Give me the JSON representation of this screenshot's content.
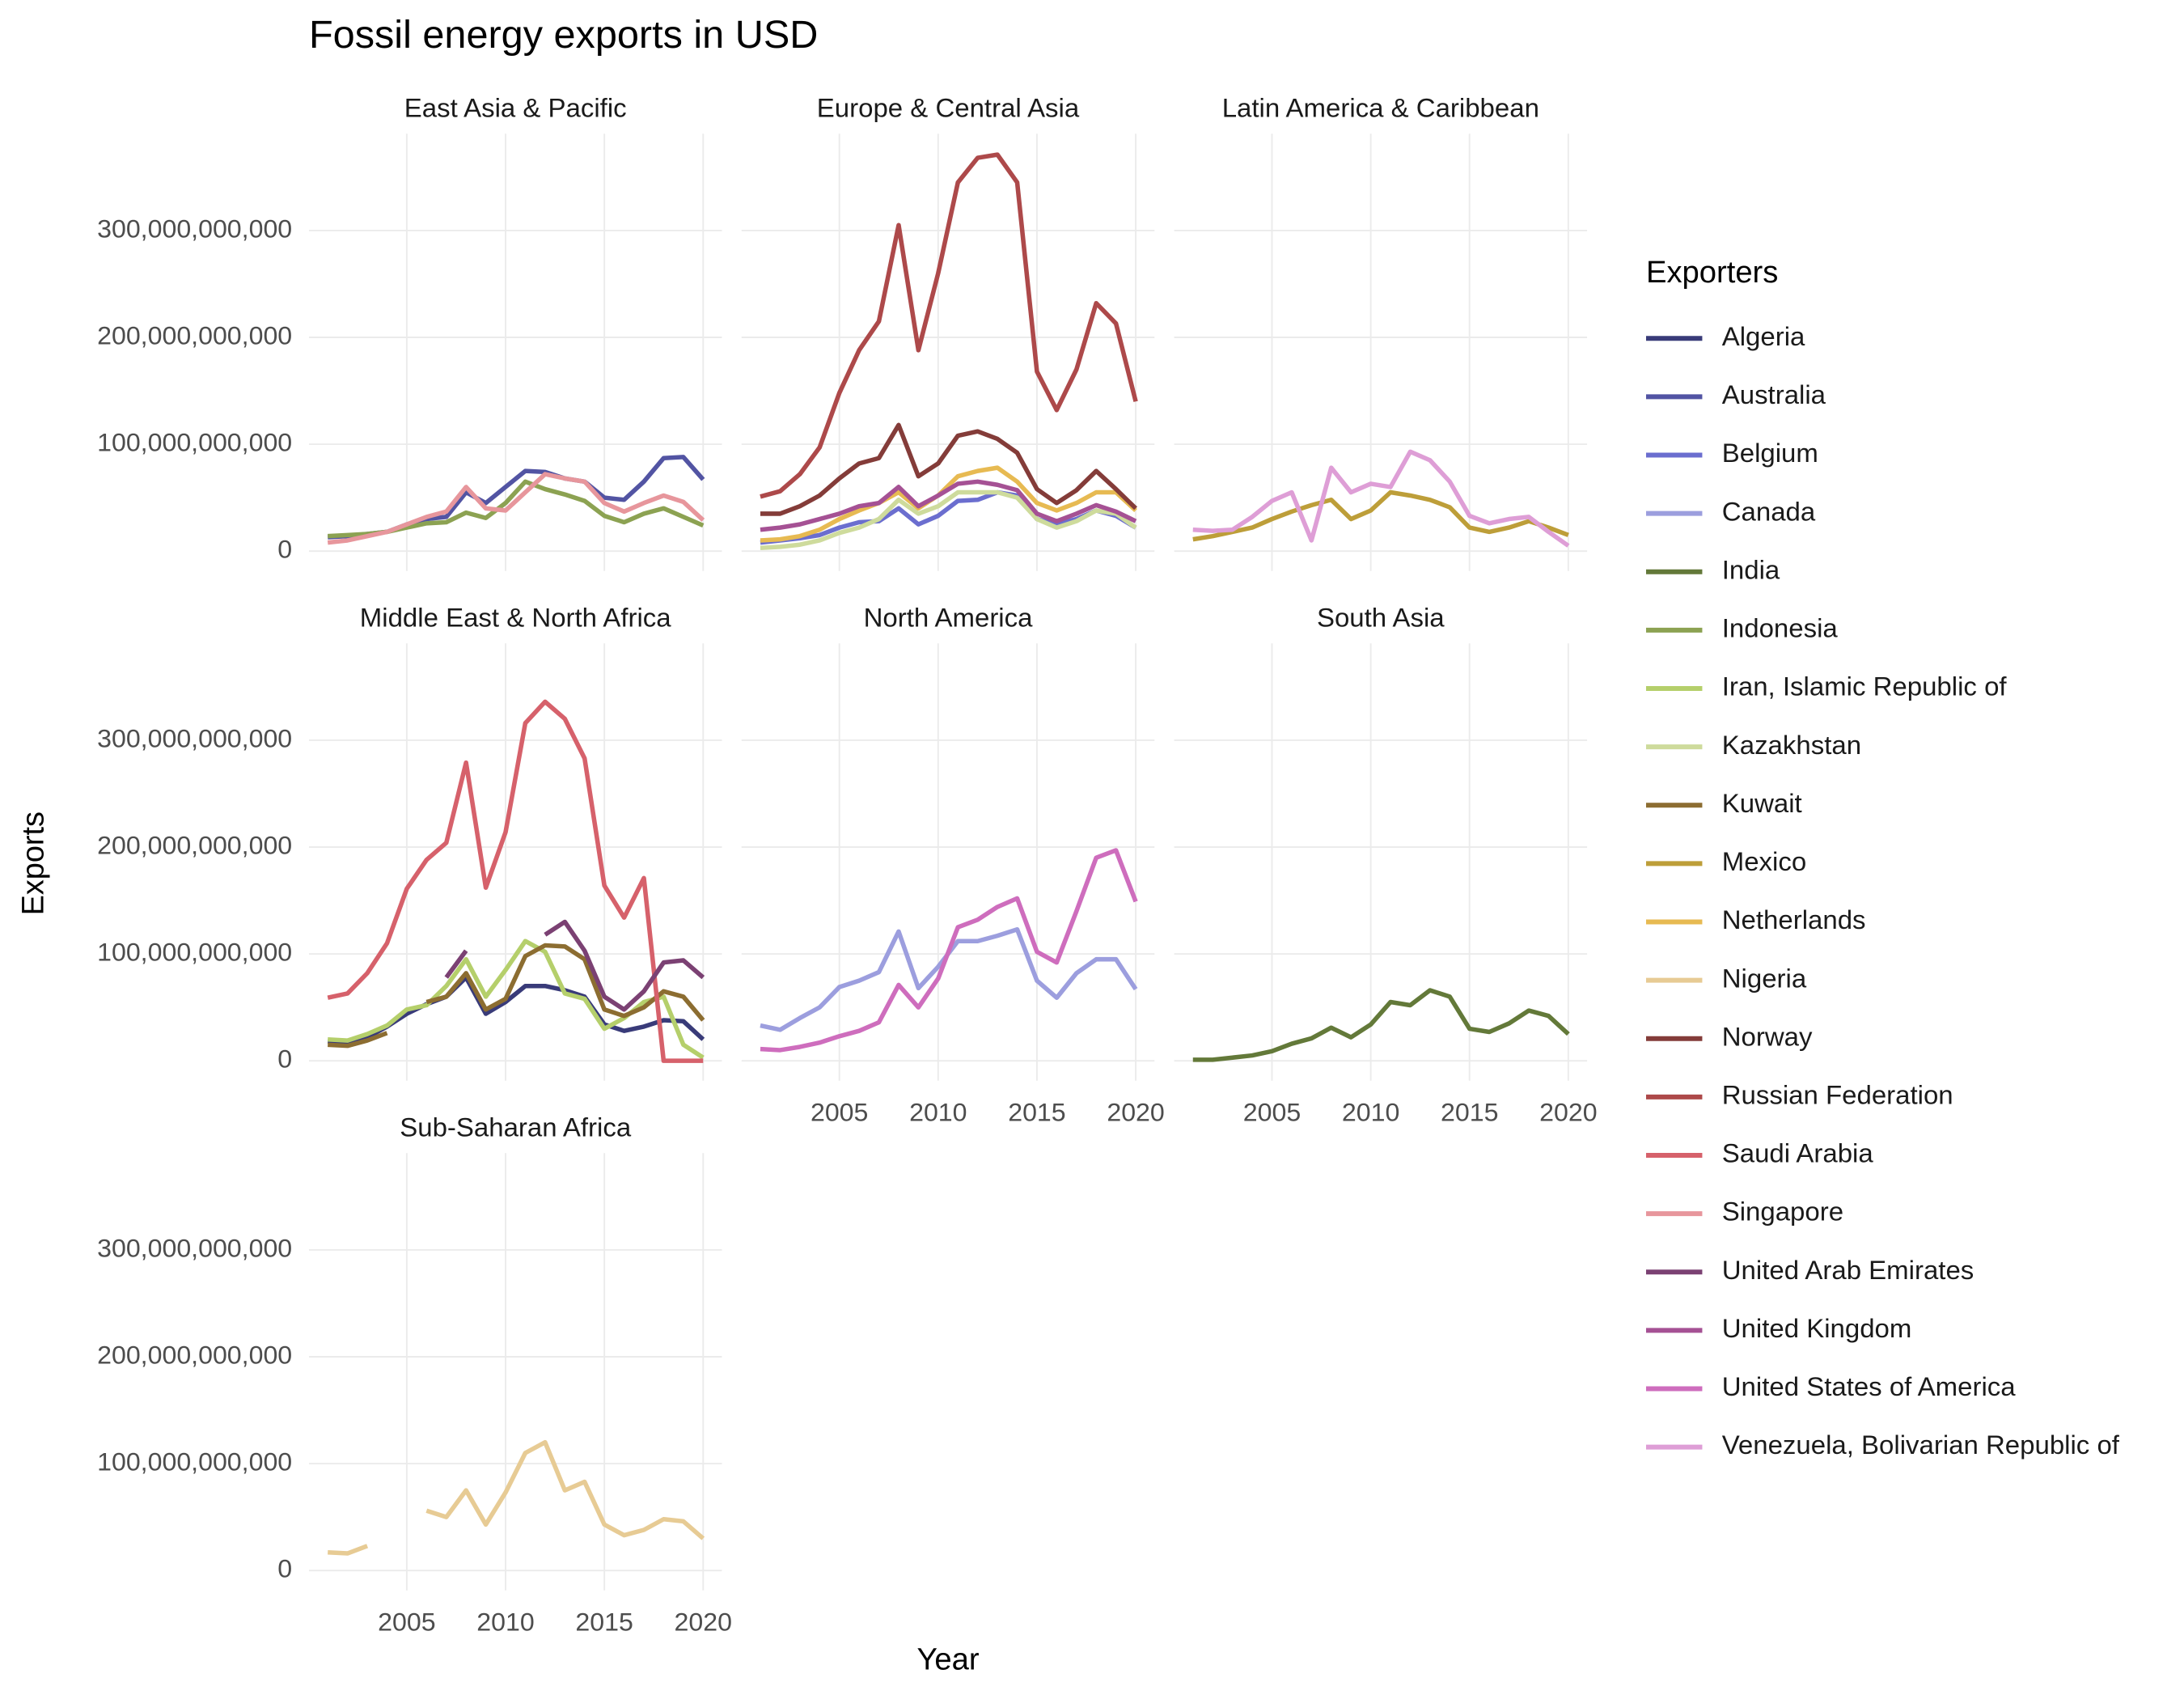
{
  "chart_data": {
    "type": "line",
    "title": "Fossil energy exports in USD",
    "x_label": "Year",
    "y_label": "Exports",
    "legend_title": "Exporters",
    "x": [
      2001,
      2002,
      2003,
      2004,
      2005,
      2006,
      2007,
      2008,
      2009,
      2010,
      2011,
      2012,
      2013,
      2014,
      2015,
      2016,
      2017,
      2018,
      2019,
      2020
    ],
    "xlim": [
      2000.05,
      2020.95
    ],
    "xticks": [
      2005,
      2010,
      2015,
      2020
    ],
    "ylim": [
      -18600000000.0,
      390600000000.0
    ],
    "yticks": [
      0,
      {
        "value": 100000000000.0,
        "label": "100,000,000,000"
      },
      {
        "value": 200000000000.0,
        "label": "200,000,000,000"
      },
      {
        "value": 300000000000.0,
        "label": "300,000,000,000"
      }
    ],
    "grid": true,
    "panels": [
      {
        "title": "East Asia & Pacific",
        "series": [
          {
            "name": "Australia",
            "color": "#5254a3",
            "values": [
              13000000000.0,
              14000000000.0,
              16000000000.0,
              18000000000.0,
              25000000000.0,
              30000000000.0,
              32000000000.0,
              55000000000.0,
              45000000000.0,
              60000000000.0,
              75000000000.0,
              74000000000.0,
              68000000000.0,
              65000000000.0,
              50000000000.0,
              48000000000.0,
              65000000000.0,
              87000000000.0,
              88000000000.0,
              67000000000.0
            ]
          },
          {
            "name": "Indonesia",
            "color": "#8ca252",
            "values": [
              14000000000.0,
              15000000000.0,
              16000000000.0,
              18000000000.0,
              22000000000.0,
              26000000000.0,
              27000000000.0,
              36000000000.0,
              31000000000.0,
              45000000000.0,
              65000000000.0,
              58000000000.0,
              53000000000.0,
              47000000000.0,
              33000000000.0,
              27000000000.0,
              35000000000.0,
              40000000000.0,
              32000000000.0,
              24000000000.0
            ]
          },
          {
            "name": "Singapore",
            "color": "#e7969c",
            "values": [
              8000000000.0,
              10000000000.0,
              14000000000.0,
              18000000000.0,
              25000000000.0,
              32000000000.0,
              37000000000.0,
              60000000000.0,
              40000000000.0,
              38000000000.0,
              55000000000.0,
              72000000000.0,
              68000000000.0,
              65000000000.0,
              45000000000.0,
              37000000000.0,
              45000000000.0,
              52000000000.0,
              46000000000.0,
              29000000000.0
            ]
          }
        ]
      },
      {
        "title": "Europe & Central Asia",
        "series": [
          {
            "name": "Belgium",
            "color": "#6b6ecf",
            "values": [
              8000000000.0,
              10000000000.0,
              12000000000.0,
              15000000000.0,
              22000000000.0,
              27000000000.0,
              28000000000.0,
              40000000000.0,
              25000000000.0,
              33000000000.0,
              47000000000.0,
              48000000000.0,
              55000000000.0,
              52000000000.0,
              30000000000.0,
              25000000000.0,
              30000000000.0,
              38000000000.0,
              33000000000.0,
              22000000000.0
            ]
          },
          {
            "name": "Kazakhstan",
            "color": "#cedb9c",
            "values": [
              3000000000.0,
              4000000000.0,
              6000000000.0,
              10000000000.0,
              17000000000.0,
              22000000000.0,
              30000000000.0,
              48000000000.0,
              35000000000.0,
              42000000000.0,
              55000000000.0,
              55000000000.0,
              55000000000.0,
              50000000000.0,
              30000000000.0,
              22000000000.0,
              28000000000.0,
              38000000000.0,
              35000000000.0,
              22000000000.0
            ]
          },
          {
            "name": "Netherlands",
            "color": "#e7ba52",
            "values": [
              10000000000.0,
              11000000000.0,
              14000000000.0,
              20000000000.0,
              30000000000.0,
              38000000000.0,
              45000000000.0,
              55000000000.0,
              40000000000.0,
              52000000000.0,
              70000000000.0,
              75000000000.0,
              78000000000.0,
              65000000000.0,
              45000000000.0,
              38000000000.0,
              45000000000.0,
              55000000000.0,
              55000000000.0,
              38000000000.0
            ]
          },
          {
            "name": "Norway",
            "color": "#843c39",
            "values": [
              35000000000.0,
              35000000000.0,
              42000000000.0,
              52000000000.0,
              68000000000.0,
              82000000000.0,
              87000000000.0,
              118000000000.0,
              70000000000.0,
              82000000000.0,
              108000000000.0,
              112000000000.0,
              105000000000.0,
              92000000000.0,
              58000000000.0,
              45000000000.0,
              57000000000.0,
              75000000000.0,
              58000000000.0,
              40000000000.0
            ]
          },
          {
            "name": "Russian Federation",
            "color": "#ad494a",
            "values": [
              51000000000.0,
              56000000000.0,
              72000000000.0,
              97000000000.0,
              148000000000.0,
              188000000000.0,
              215000000000.0,
              305000000000.0,
              188000000000.0,
              260000000000.0,
              345000000000.0,
              368000000000.0,
              371000000000.0,
              345000000000.0,
              168000000000.0,
              132000000000.0,
              170000000000.0,
              232000000000.0,
              213000000000.0,
              140000000000.0
            ]
          },
          {
            "name": "United Kingdom",
            "color": "#a55194",
            "values": [
              20000000000.0,
              22000000000.0,
              25000000000.0,
              30000000000.0,
              35000000000.0,
              42000000000.0,
              45000000000.0,
              60000000000.0,
              42000000000.0,
              52000000000.0,
              63000000000.0,
              65000000000.0,
              62000000000.0,
              57000000000.0,
              35000000000.0,
              28000000000.0,
              35000000000.0,
              43000000000.0,
              37000000000.0,
              28000000000.0
            ]
          }
        ]
      },
      {
        "title": "Latin America & Caribbean",
        "series": [
          {
            "name": "Mexico",
            "color": "#bd9e39",
            "values": [
              11000000000.0,
              14000000000.0,
              18000000000.0,
              22000000000.0,
              30000000000.0,
              37000000000.0,
              43000000000.0,
              48000000000.0,
              30000000000.0,
              38000000000.0,
              55000000000.0,
              52000000000.0,
              48000000000.0,
              41000000000.0,
              22000000000.0,
              18000000000.0,
              22000000000.0,
              28000000000.0,
              22000000000.0,
              15000000000.0
            ]
          },
          {
            "name": "Venezuela, Bolivarian Republic of",
            "color": "#de9ed6",
            "values": [
              20000000000.0,
              19000000000.0,
              20000000000.0,
              32000000000.0,
              47000000000.0,
              55000000000.0,
              10000000000.0,
              78000000000.0,
              55000000000.0,
              63000000000.0,
              60000000000.0,
              93000000000.0,
              85000000000.0,
              65000000000.0,
              33000000000.0,
              26000000000.0,
              30000000000.0,
              32000000000.0,
              18000000000.0,
              5000000000.0
            ]
          }
        ]
      },
      {
        "title": "Middle East & North Africa",
        "series": [
          {
            "name": "Algeria",
            "color": "#393b79",
            "values": [
              18000000000.0,
              17000000000.0,
              22000000000.0,
              32000000000.0,
              44000000000.0,
              53000000000.0,
              60000000000.0,
              78000000000.0,
              44000000000.0,
              55000000000.0,
              70000000000.0,
              70000000000.0,
              66000000000.0,
              60000000000.0,
              34000000000.0,
              28000000000.0,
              32000000000.0,
              38000000000.0,
              37000000000.0,
              20000000000.0
            ]
          },
          {
            "name": "Iran, Islamic Republic of",
            "color": "#b5cf6b",
            "values": [
              20000000000.0,
              19000000000.0,
              25000000000.0,
              33000000000.0,
              48000000000.0,
              52000000000.0,
              70000000000.0,
              95000000000.0,
              60000000000.0,
              85000000000.0,
              112000000000.0,
              102000000000.0,
              63000000000.0,
              58000000000.0,
              30000000000.0,
              40000000000.0,
              55000000000.0,
              60000000000.0,
              15000000000.0,
              3000000000.0
            ]
          },
          {
            "name": "Kuwait",
            "color": "#8c6d31",
            "values": [
              15000000000.0,
              14000000000.0,
              19000000000.0,
              26000000000.0,
              null,
              55000000000.0,
              60000000000.0,
              82000000000.0,
              48000000000.0,
              58000000000.0,
              98000000000.0,
              108000000000.0,
              107000000000.0,
              95000000000.0,
              48000000000.0,
              42000000000.0,
              50000000000.0,
              65000000000.0,
              60000000000.0,
              38000000000.0
            ]
          },
          {
            "name": "Saudi Arabia",
            "color": "#d6616b",
            "values": [
              59000000000.0,
              63000000000.0,
              82000000000.0,
              110000000000.0,
              161000000000.0,
              188000000000.0,
              204000000000.0,
              279000000000.0,
              162000000000.0,
              214000000000.0,
              316000000000.0,
              336000000000.0,
              320000000000.0,
              283000000000.0,
              164000000000.0,
              134000000000.0,
              171000000000.0,
              0,
              0,
              0
            ]
          },
          {
            "name": "United Arab Emirates",
            "color": "#7b4173",
            "values": [
              null,
              null,
              null,
              null,
              null,
              null,
              78000000000.0,
              103000000000.0,
              null,
              null,
              null,
              118000000000.0,
              130000000000.0,
              103000000000.0,
              60000000000.0,
              48000000000.0,
              65000000000.0,
              92000000000.0,
              94000000000.0,
              78000000000.0
            ]
          }
        ]
      },
      {
        "title": "North America",
        "series": [
          {
            "name": "Canada",
            "color": "#9c9ede",
            "values": [
              33000000000.0,
              29000000000.0,
              40000000000.0,
              50000000000.0,
              69000000000.0,
              75000000000.0,
              83000000000.0,
              121000000000.0,
              68000000000.0,
              88000000000.0,
              112000000000.0,
              112000000000.0,
              117000000000.0,
              123000000000.0,
              75000000000.0,
              59000000000.0,
              82000000000.0,
              95000000000.0,
              95000000000.0,
              67000000000.0
            ]
          },
          {
            "name": "United States of America",
            "color": "#ce6dbd",
            "values": [
              11000000000.0,
              10000000000.0,
              13000000000.0,
              17000000000.0,
              23000000000.0,
              28000000000.0,
              36000000000.0,
              71000000000.0,
              50000000000.0,
              77000000000.0,
              125000000000.0,
              132000000000.0,
              144000000000.0,
              152000000000.0,
              102000000000.0,
              92000000000.0,
              140000000000.0,
              190000000000.0,
              197000000000.0,
              149000000000.0
            ]
          }
        ]
      },
      {
        "title": "South Asia",
        "series": [
          {
            "name": "India",
            "color": "#637939",
            "values": [
              1000000000.0,
              1000000000.0,
              3000000000.0,
              5000000000.0,
              9000000000.0,
              16000000000.0,
              21000000000.0,
              31000000000.0,
              22000000000.0,
              34000000000.0,
              55000000000.0,
              52000000000.0,
              66000000000.0,
              60000000000.0,
              30000000000.0,
              27000000000.0,
              35000000000.0,
              47000000000.0,
              42000000000.0,
              25000000000.0
            ]
          }
        ]
      },
      {
        "title": "Sub-Saharan Africa",
        "series": [
          {
            "name": "Nigeria",
            "color": "#e7cb94",
            "values": [
              17000000000.0,
              16000000000.0,
              23000000000.0,
              null,
              null,
              56000000000.0,
              50000000000.0,
              75000000000.0,
              43000000000.0,
              73000000000.0,
              110000000000.0,
              120000000000.0,
              75000000000.0,
              83000000000.0,
              43000000000.0,
              33000000000.0,
              38000000000.0,
              48000000000.0,
              46000000000.0,
              30000000000.0
            ]
          }
        ]
      }
    ]
  }
}
